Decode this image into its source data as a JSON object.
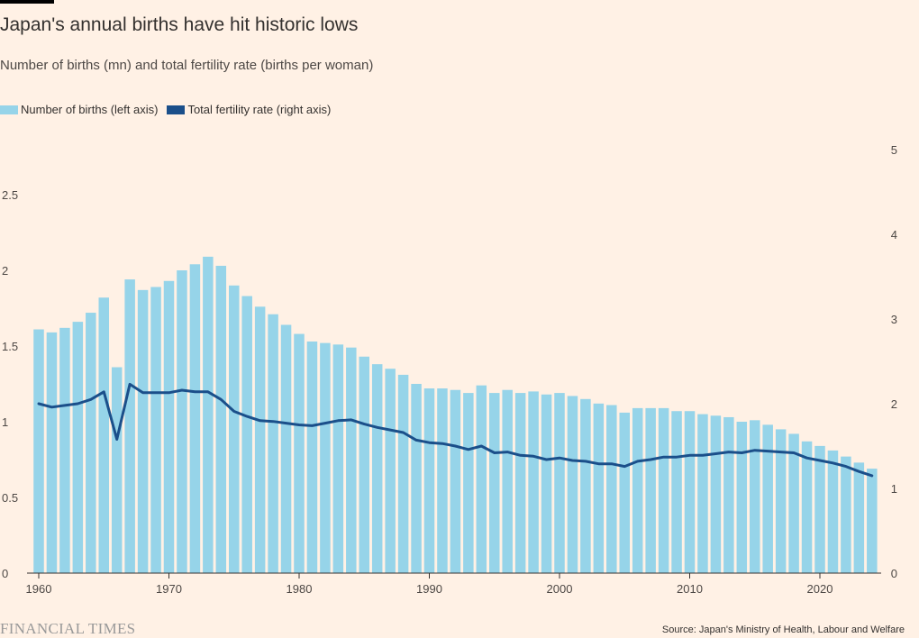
{
  "header": {
    "title": "Japan's annual births have hit historic lows",
    "subtitle": "Number of births (mn) and total fertility rate (births per woman)"
  },
  "legend": [
    {
      "label": "Number of births (left axis)",
      "color": "#96d4e9"
    },
    {
      "label": "Total fertility rate (right axis)",
      "color": "#1b4f8a"
    }
  ],
  "footer": {
    "brand": "FINANCIAL TIMES",
    "source": "Source: Japan's Ministry of Health, Labour and Welfare"
  },
  "chart_data": {
    "type": "bar",
    "x": [
      1960,
      1961,
      1962,
      1963,
      1964,
      1965,
      1966,
      1967,
      1968,
      1969,
      1970,
      1971,
      1972,
      1973,
      1974,
      1975,
      1976,
      1977,
      1978,
      1979,
      1980,
      1981,
      1982,
      1983,
      1984,
      1985,
      1986,
      1987,
      1988,
      1989,
      1990,
      1991,
      1992,
      1993,
      1994,
      1995,
      1996,
      1997,
      1998,
      1999,
      2000,
      2001,
      2002,
      2003,
      2004,
      2005,
      2006,
      2007,
      2008,
      2009,
      2010,
      2011,
      2012,
      2013,
      2014,
      2015,
      2016,
      2017,
      2018,
      2019,
      2020,
      2021,
      2022,
      2023,
      2024
    ],
    "series": [
      {
        "name": "Number of births (left axis)",
        "type": "bar",
        "axis": "left",
        "values": [
          1.61,
          1.59,
          1.62,
          1.66,
          1.72,
          1.82,
          1.36,
          1.94,
          1.87,
          1.89,
          1.93,
          2.0,
          2.04,
          2.09,
          2.03,
          1.9,
          1.83,
          1.76,
          1.71,
          1.64,
          1.58,
          1.53,
          1.52,
          1.51,
          1.49,
          1.43,
          1.38,
          1.35,
          1.31,
          1.25,
          1.22,
          1.22,
          1.21,
          1.19,
          1.24,
          1.19,
          1.21,
          1.19,
          1.2,
          1.18,
          1.19,
          1.17,
          1.15,
          1.12,
          1.11,
          1.06,
          1.09,
          1.09,
          1.09,
          1.07,
          1.07,
          1.05,
          1.04,
          1.03,
          1.0,
          1.01,
          0.98,
          0.95,
          0.92,
          0.87,
          0.84,
          0.81,
          0.77,
          0.73,
          0.69
        ]
      },
      {
        "name": "Total fertility rate (right axis)",
        "type": "line",
        "axis": "right",
        "values": [
          2.0,
          1.96,
          1.98,
          2.0,
          2.05,
          2.14,
          1.58,
          2.23,
          2.13,
          2.13,
          2.13,
          2.16,
          2.14,
          2.14,
          2.05,
          1.91,
          1.85,
          1.8,
          1.79,
          1.77,
          1.75,
          1.74,
          1.77,
          1.8,
          1.81,
          1.76,
          1.72,
          1.69,
          1.66,
          1.57,
          1.54,
          1.53,
          1.5,
          1.46,
          1.5,
          1.42,
          1.43,
          1.39,
          1.38,
          1.34,
          1.36,
          1.33,
          1.32,
          1.29,
          1.29,
          1.26,
          1.32,
          1.34,
          1.37,
          1.37,
          1.39,
          1.39,
          1.41,
          1.43,
          1.42,
          1.45,
          1.44,
          1.43,
          1.42,
          1.36,
          1.33,
          1.3,
          1.26,
          1.2,
          1.15
        ]
      }
    ],
    "left_axis": {
      "ylim": [
        0,
        2.5
      ],
      "ticks": [
        0,
        0.5,
        1,
        1.5,
        2,
        2.5
      ],
      "tick_labels": [
        "0",
        "0.5",
        "1",
        "1.5",
        "2",
        "2.5"
      ]
    },
    "right_axis": {
      "ylim": [
        0,
        5
      ],
      "ticks": [
        0,
        1,
        2,
        3,
        4,
        5
      ],
      "tick_labels": [
        "0",
        "1",
        "2",
        "3",
        "4",
        "5"
      ]
    },
    "x_ticks": [
      1960,
      1970,
      1980,
      1990,
      2000,
      2010,
      2020
    ],
    "x_tick_labels": [
      "1960",
      "1970",
      "1980",
      "1990",
      "2000",
      "2010",
      "2020"
    ],
    "xlim": [
      1960,
      2024
    ],
    "grid": false,
    "legend_position": "top-left"
  }
}
